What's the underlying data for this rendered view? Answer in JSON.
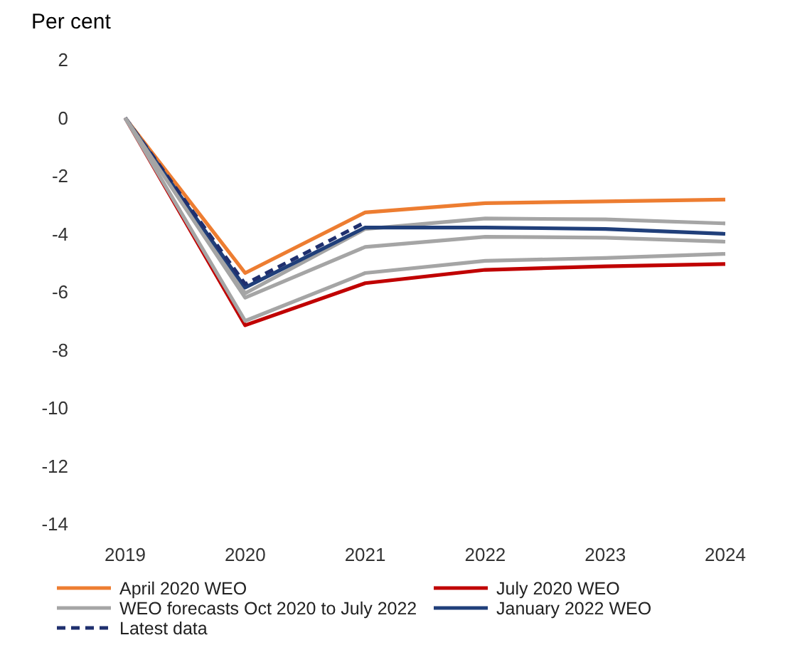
{
  "chart_data": {
    "type": "line",
    "ylabel": "Per cent",
    "categories": [
      "2019",
      "2020",
      "2021",
      "2022",
      "2023",
      "2024"
    ],
    "ylim": [
      -14,
      2
    ],
    "yticks": [
      -14,
      -12,
      -10,
      -8,
      -6,
      -4,
      -2,
      0,
      2
    ],
    "grid": false,
    "legend": "bottom",
    "series": [
      {
        "name": "April 2020 WEO",
        "color": "#ed7d31",
        "values": [
          0,
          -5.35,
          -3.26,
          -2.94,
          -2.88,
          -2.82
        ]
      },
      {
        "name": "July 2020 WEO",
        "color": "#c00000",
        "values": [
          0,
          -7.15,
          -5.7,
          -5.24,
          -5.12,
          -5.04
        ]
      },
      {
        "name": "WEO forecasts Oct 2020 to July 2022",
        "color": "#a5a5a5",
        "values": [
          0,
          -6.05,
          -3.83,
          -3.47,
          -3.5,
          -3.64
        ]
      },
      {
        "name": "January 2022 WEO",
        "color": "#203f7a",
        "values": [
          0,
          -5.85,
          -3.78,
          -3.78,
          -3.83,
          -4.0
        ]
      },
      {
        "name": "Latest data",
        "color": "#1f2f6e",
        "line_style": "dashed",
        "values": [
          0,
          -5.73,
          -3.6,
          null,
          null,
          null
        ]
      },
      {
        "color": "#a5a5a5",
        "values": [
          0,
          -6.2,
          -4.45,
          -4.1,
          -4.13,
          -4.27
        ]
      },
      {
        "color": "#a5a5a5",
        "values": [
          0,
          -7.0,
          -5.35,
          -4.93,
          -4.83,
          -4.69
        ]
      }
    ]
  }
}
